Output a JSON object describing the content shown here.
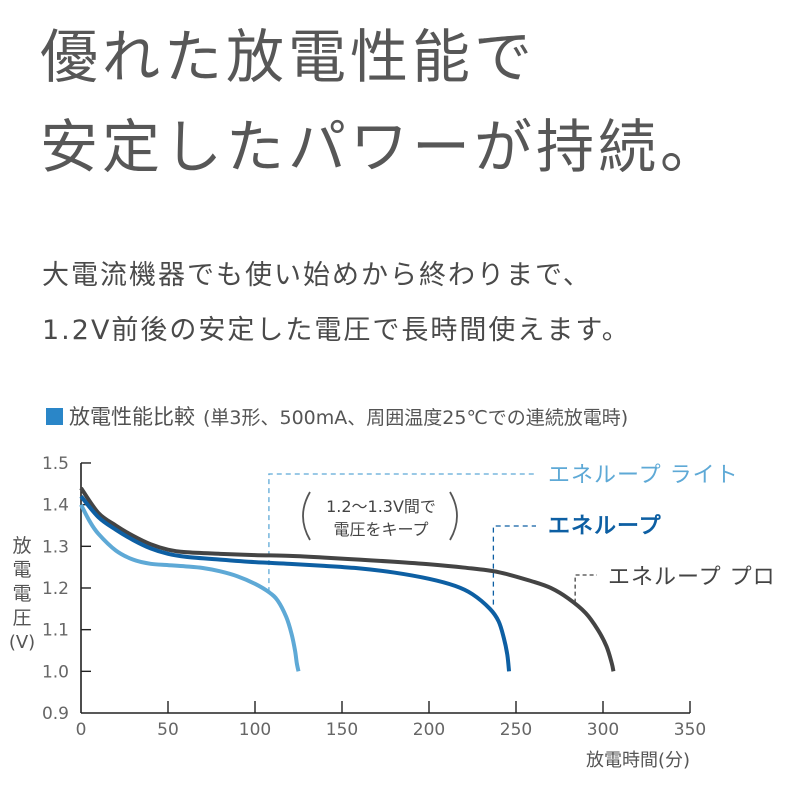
{
  "headline": {
    "line1": "優れた放電性能で",
    "line2": "安定したパワーが持続。"
  },
  "subtext": {
    "line1": "大電流機器でも使い始めから終わりまで、",
    "line2": "1.2V前後の安定した電圧で長時間使えます。"
  },
  "chart_title": {
    "main": "放電性能比較",
    "condition": "(単3形、500mA、周囲温度25℃での連続放電時)",
    "marker_color": "#2a86c8"
  },
  "annotation": {
    "line1": "1.2〜1.3V間で",
    "line2": "電圧をキープ"
  },
  "colors": {
    "lite": "#5ea9d6",
    "standard": "#0d5fa3",
    "pro": "#444444",
    "axis": "#222222",
    "text": "#575757"
  },
  "chart_data": {
    "type": "line",
    "title": "放電性能比較 (単3形、500mA、周囲温度25℃での連続放電時)",
    "xlabel": "放電時間(分)",
    "ylabel": "放電電圧(V)",
    "xlim": [
      0,
      350
    ],
    "ylim": [
      0.9,
      1.5
    ],
    "xticks": [
      0,
      50,
      100,
      150,
      200,
      250,
      300,
      350
    ],
    "yticks": [
      0.9,
      1.0,
      1.1,
      1.2,
      1.3,
      1.4,
      1.5
    ],
    "ytick_labels": [
      "0.9",
      "1.0",
      "1.1",
      "1.2",
      "1.3",
      "1.4",
      "1.5"
    ],
    "grid": false,
    "legend_position": "inline labels, upper right",
    "series": [
      {
        "name": "エネループ ライト",
        "x": [
          0,
          5,
          10,
          20,
          30,
          40,
          50,
          60,
          70,
          80,
          90,
          100,
          108,
          113,
          118,
          121,
          123,
          124,
          125
        ],
        "y": [
          1.4,
          1.36,
          1.33,
          1.29,
          1.268,
          1.258,
          1.255,
          1.252,
          1.248,
          1.24,
          1.228,
          1.21,
          1.19,
          1.17,
          1.13,
          1.09,
          1.05,
          1.02,
          1.0
        ]
      },
      {
        "name": "エネループ",
        "x": [
          0,
          10,
          20,
          30,
          40,
          50,
          60,
          80,
          100,
          120,
          140,
          160,
          180,
          200,
          215,
          225,
          235,
          240,
          243,
          245,
          246
        ],
        "y": [
          1.42,
          1.37,
          1.34,
          1.315,
          1.295,
          1.282,
          1.275,
          1.268,
          1.262,
          1.258,
          1.253,
          1.247,
          1.237,
          1.222,
          1.205,
          1.185,
          1.15,
          1.12,
          1.08,
          1.04,
          1.0
        ]
      },
      {
        "name": "エネループ プロ",
        "x": [
          0,
          10,
          20,
          30,
          40,
          50,
          60,
          80,
          100,
          120,
          140,
          160,
          180,
          200,
          220,
          240,
          260,
          270,
          280,
          290,
          297,
          302,
          305,
          306
        ],
        "y": [
          1.44,
          1.38,
          1.35,
          1.325,
          1.305,
          1.292,
          1.286,
          1.282,
          1.279,
          1.277,
          1.273,
          1.268,
          1.263,
          1.257,
          1.249,
          1.238,
          1.215,
          1.2,
          1.175,
          1.14,
          1.1,
          1.06,
          1.02,
          1.0
        ]
      }
    ],
    "annotations": [
      {
        "text": "1.2〜1.3V間で 電圧をキープ",
        "position": "upper middle"
      },
      {
        "text": "エネループ ライト",
        "pointer_x": 108
      },
      {
        "text": "エネループ",
        "pointer_x": 237
      },
      {
        "text": "エネループ プロ",
        "pointer_x": 284
      }
    ]
  }
}
